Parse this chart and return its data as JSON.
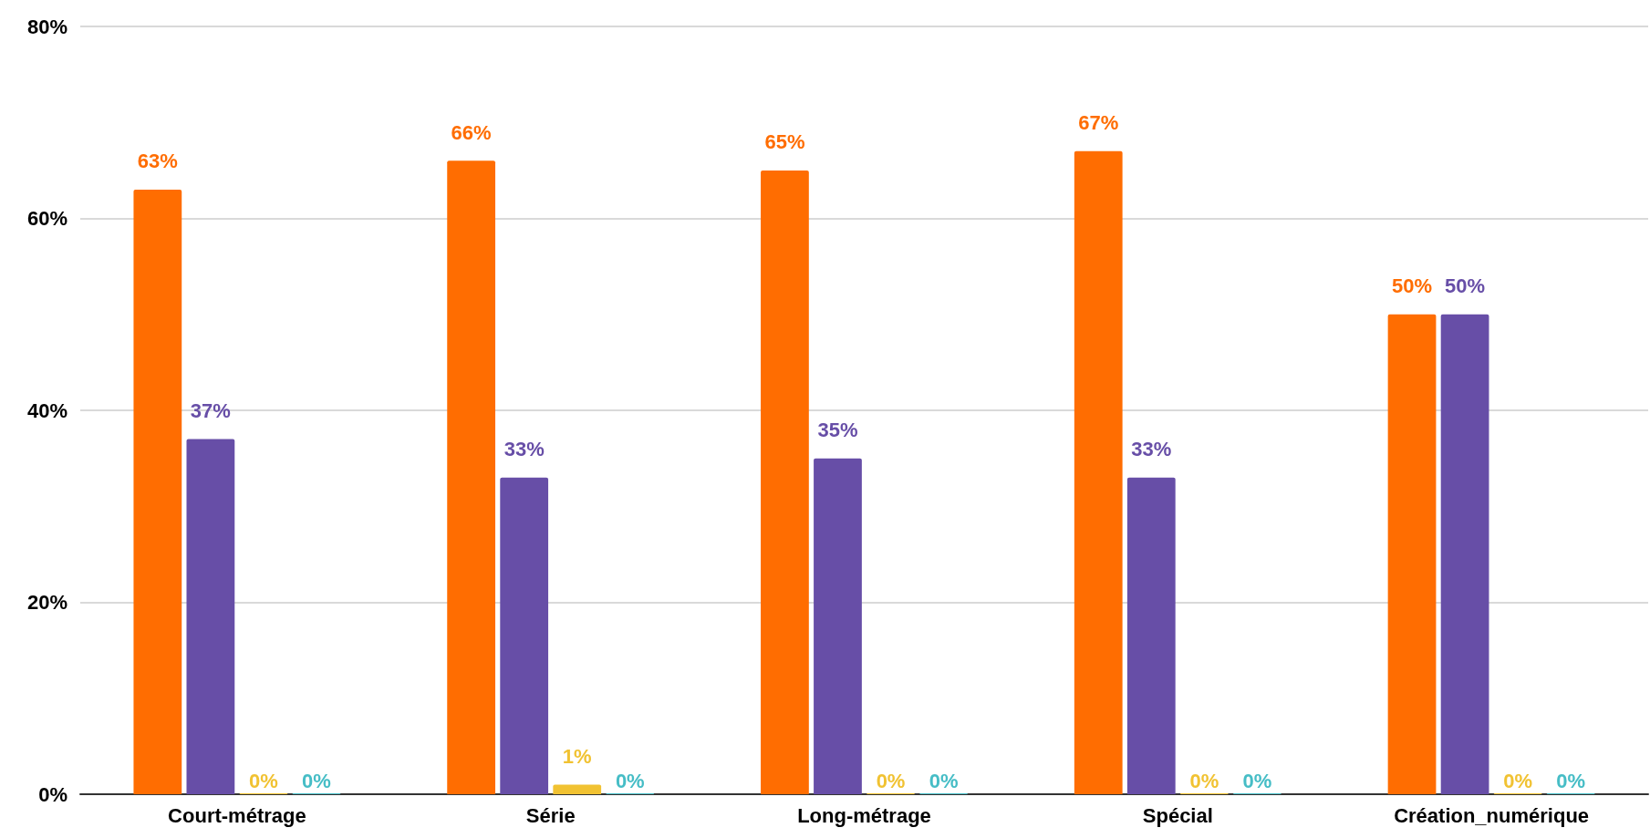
{
  "chart_data": {
    "type": "bar",
    "categories": [
      "Court-métrage",
      "Série",
      "Long-métrage",
      "Spécial",
      "Création_numérique"
    ],
    "series": [
      {
        "color": "#ff6d01",
        "values": [
          63,
          66,
          65,
          67,
          50
        ],
        "value_labels": [
          "63%",
          "66%",
          "65%",
          "67%",
          "50%"
        ]
      },
      {
        "color": "#674ea7",
        "values": [
          37,
          33,
          35,
          33,
          50
        ],
        "value_labels": [
          "37%",
          "33%",
          "35%",
          "33%",
          "50%"
        ]
      },
      {
        "color": "#f1c232",
        "values": [
          0,
          1,
          0,
          0,
          0
        ],
        "value_labels": [
          "0%",
          "1%",
          "0%",
          "0%",
          "0%"
        ]
      },
      {
        "color": "#46bdc6",
        "values": [
          0,
          0,
          0,
          0,
          0
        ],
        "value_labels": [
          "0%",
          "0%",
          "0%",
          "0%",
          "0%"
        ]
      }
    ],
    "ylim": [
      0,
      80
    ],
    "yticks": [
      {
        "value": 0,
        "label": "0%"
      },
      {
        "value": 20,
        "label": "20%"
      },
      {
        "value": 40,
        "label": "40%"
      },
      {
        "value": 60,
        "label": "60%"
      },
      {
        "value": 80,
        "label": "80%"
      }
    ],
    "grid": "y"
  }
}
